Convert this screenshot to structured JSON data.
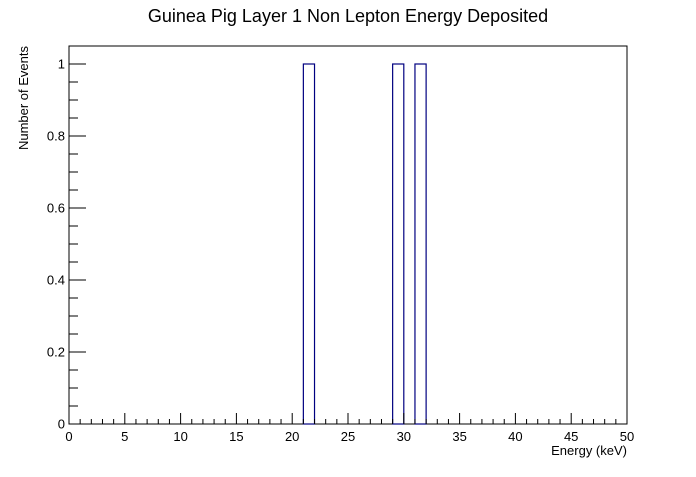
{
  "chart_data": {
    "type": "bar",
    "title": "Guinea Pig Layer 1 Non Lepton Energy Deposited",
    "xlabel": "Energy (keV)",
    "ylabel": "Number of Events",
    "xlim": [
      0,
      50
    ],
    "ylim": [
      0,
      1.05
    ],
    "bin_width": 1,
    "bins": [
      {
        "x_low": 21,
        "x_high": 22,
        "value": 1
      },
      {
        "x_low": 29,
        "x_high": 30,
        "value": 1
      },
      {
        "x_low": 31,
        "x_high": 32,
        "value": 1
      }
    ],
    "x_ticks": [
      "0",
      "5",
      "10",
      "15",
      "20",
      "25",
      "30",
      "35",
      "40",
      "45",
      "50"
    ],
    "y_ticks": [
      "0",
      "0.2",
      "0.4",
      "0.6",
      "0.8",
      "1"
    ],
    "grid": false,
    "legend": "none",
    "colors": {
      "bar_outline": "#000080",
      "axis": "#000000",
      "background": "#ffffff"
    }
  }
}
